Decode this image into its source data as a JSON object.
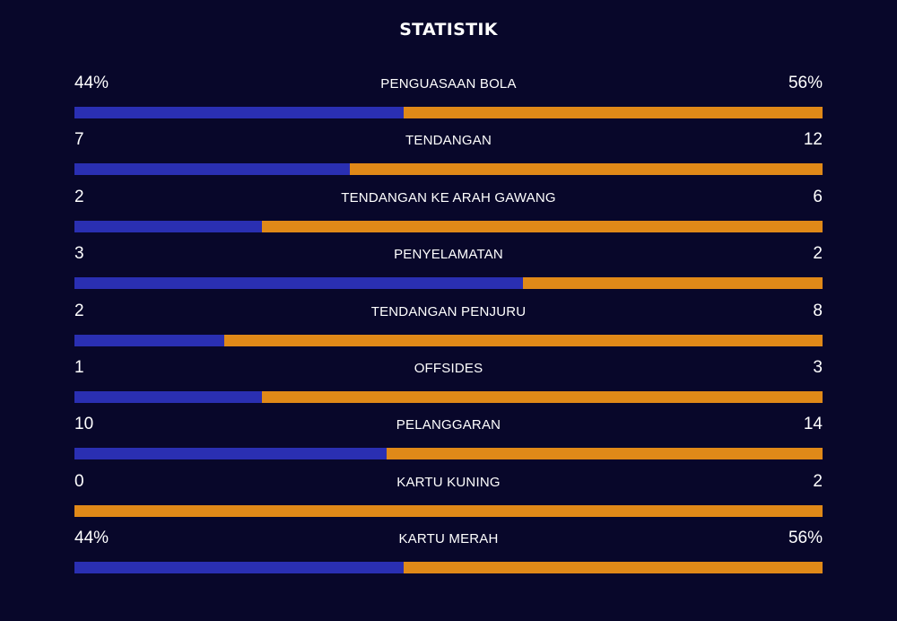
{
  "title": "STATISTIK",
  "colors": {
    "background": "#08072a",
    "home": "#2a2fb2",
    "away": "#e08918"
  },
  "stats": [
    {
      "label": "PENGUASAAN BOLA",
      "home": "44%",
      "away": "56%",
      "home_share": 0.44
    },
    {
      "label": "TENDANGAN",
      "home": "7",
      "away": "12",
      "home_share": 0.368
    },
    {
      "label": "TENDANGAN KE ARAH GAWANG",
      "home": "2",
      "away": "6",
      "home_share": 0.25
    },
    {
      "label": "PENYELAMATAN",
      "home": "3",
      "away": "2",
      "home_share": 0.6
    },
    {
      "label": "TENDANGAN PENJURU",
      "home": "2",
      "away": "8",
      "home_share": 0.2
    },
    {
      "label": "OFFSIDES",
      "home": "1",
      "away": "3",
      "home_share": 0.25
    },
    {
      "label": "PELANGGARAN",
      "home": "10",
      "away": "14",
      "home_share": 0.417
    },
    {
      "label": "KARTU KUNING",
      "home": "0",
      "away": "2",
      "home_share": 0
    },
    {
      "label": "KARTU MERAH",
      "home": "44%",
      "away": "56%",
      "home_share": 0.44
    }
  ]
}
